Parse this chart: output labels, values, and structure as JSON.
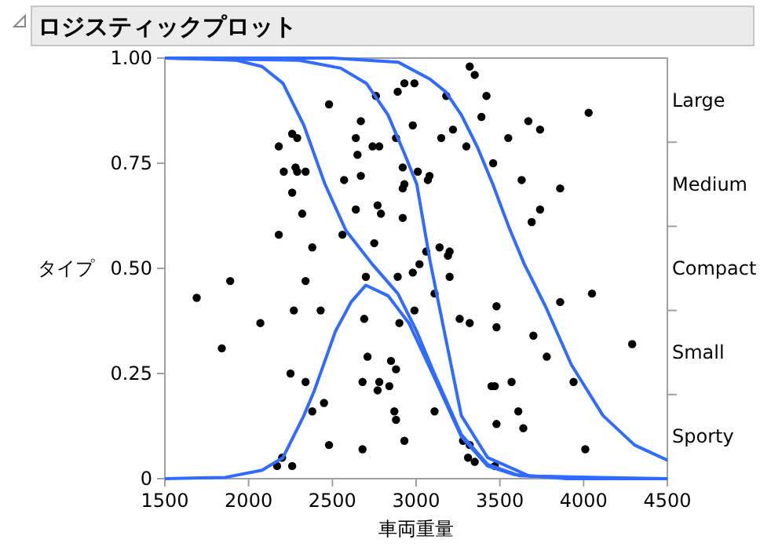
{
  "chart_data": {
    "type": "scatter",
    "title": "ロジスティックプロット",
    "xlabel": "車両重量",
    "ylabel": "タイプ",
    "xlim": [
      1500,
      4500
    ],
    "xticks": [
      1500,
      2000,
      2500,
      3000,
      3500,
      4000,
      4500
    ],
    "ylim": [
      0,
      1
    ],
    "yticks": [
      {
        "value": 0,
        "label": "0"
      },
      {
        "value": 0.25,
        "label": "0.25"
      },
      {
        "value": 0.5,
        "label": "0.50"
      },
      {
        "value": 0.75,
        "label": "0.75"
      },
      {
        "value": 1,
        "label": "1.00"
      }
    ],
    "annotations": [
      "Large",
      "Medium",
      "Compact",
      "Small",
      "Sporty"
    ],
    "grid": false,
    "series": [
      {
        "type": "scatter",
        "color": "#000000",
        "marker": "circle",
        "x": [
          2480,
          2760,
          2890,
          2930,
          2990,
          2670,
          2980,
          2260,
          2290,
          2180,
          2640,
          2880,
          2740,
          2780,
          2650,
          2210,
          2280,
          2290,
          2340,
          2920,
          2570,
          2670,
          2930,
          2920,
          2260,
          2640,
          2770,
          2790,
          2920,
          2320,
          2180,
          2560,
          2750,
          2380,
          3320,
          3350,
          3180,
          3420,
          4030,
          3390,
          3670,
          3740,
          3220,
          3150,
          3550,
          3300,
          3460,
          3010,
          3080,
          3070,
          3630,
          3860,
          3740,
          3690,
          3060,
          3140,
          3200,
          3190,
          1690,
          1890,
          1840,
          2070,
          2340,
          2270,
          2430,
          2700,
          2890,
          2980,
          2690,
          2900,
          2990,
          2250,
          2340,
          2710,
          2850,
          2880,
          2680,
          2780,
          2840,
          2770,
          2450,
          2380,
          2870,
          2880,
          2930,
          2480,
          2680,
          2200,
          2170,
          2260,
          3020,
          3200,
          3110,
          3860,
          4050,
          3480,
          3260,
          3320,
          3480,
          3700,
          4290,
          3780,
          3570,
          3940,
          3450,
          3470,
          3110,
          3610,
          3480,
          3640,
          3280,
          3320,
          3310,
          3350,
          4010,
          3470
        ],
        "values": [
          0.89,
          0.91,
          0.92,
          0.94,
          0.94,
          0.85,
          0.84,
          0.82,
          0.81,
          0.79,
          0.81,
          0.81,
          0.79,
          0.79,
          0.77,
          0.73,
          0.74,
          0.73,
          0.73,
          0.74,
          0.71,
          0.72,
          0.7,
          0.69,
          0.68,
          0.64,
          0.65,
          0.63,
          0.62,
          0.63,
          0.58,
          0.58,
          0.56,
          0.55,
          0.98,
          0.96,
          0.91,
          0.91,
          0.87,
          0.86,
          0.85,
          0.83,
          0.83,
          0.81,
          0.81,
          0.79,
          0.75,
          0.73,
          0.72,
          0.71,
          0.71,
          0.69,
          0.64,
          0.61,
          0.54,
          0.55,
          0.54,
          0.53,
          0.43,
          0.47,
          0.31,
          0.37,
          0.47,
          0.4,
          0.4,
          0.48,
          0.48,
          0.49,
          0.38,
          0.37,
          0.4,
          0.25,
          0.23,
          0.29,
          0.28,
          0.26,
          0.23,
          0.23,
          0.22,
          0.21,
          0.18,
          0.16,
          0.16,
          0.14,
          0.09,
          0.08,
          0.07,
          0.05,
          0.03,
          0.03,
          0.51,
          0.48,
          0.44,
          0.42,
          0.44,
          0.41,
          0.38,
          0.37,
          0.36,
          0.34,
          0.32,
          0.29,
          0.23,
          0.23,
          0.22,
          0.22,
          0.16,
          0.16,
          0.13,
          0.12,
          0.09,
          0.08,
          0.05,
          0.04,
          0.07,
          0.03
        ]
      },
      {
        "type": "line",
        "color": "#2f6bff",
        "x": [
          1500,
          1860,
          2080,
          2205,
          2330,
          2393,
          2518,
          2612,
          2700,
          2832,
          2957,
          3114,
          3270,
          3427,
          3584,
          3900,
          4500
        ],
        "values": [
          0,
          0.003,
          0.02,
          0.05,
          0.15,
          0.21,
          0.35,
          0.42,
          0.46,
          0.435,
          0.37,
          0.236,
          0.1,
          0.03,
          0.01,
          0,
          0
        ]
      },
      {
        "type": "line",
        "color": "#2f6bff",
        "x": [
          1500,
          1923,
          2080,
          2205,
          2330,
          2456,
          2581,
          2738,
          2891,
          3004,
          3114,
          3270,
          3427,
          3615,
          4200
        ],
        "values": [
          1,
          0.995,
          0.98,
          0.94,
          0.84,
          0.7,
          0.59,
          0.51,
          0.44,
          0.35,
          0.245,
          0.105,
          0.034,
          0.007,
          0
        ]
      },
      {
        "type": "line",
        "color": "#2f6bff",
        "x": [
          1500,
          2300,
          2550,
          2703,
          2832,
          2926,
          3004,
          3082,
          3270,
          3427,
          3678,
          4500
        ],
        "values": [
          1,
          0.995,
          0.976,
          0.94,
          0.865,
          0.777,
          0.7,
          0.52,
          0.15,
          0.05,
          0.006,
          0
        ]
      },
      {
        "type": "line",
        "color": "#2f6bff",
        "x": [
          1500,
          2500,
          2894,
          3082,
          3176,
          3270,
          3364,
          3458,
          3552,
          3646,
          3772,
          3928,
          4116,
          4304,
          4500
        ],
        "values": [
          1,
          1,
          0.99,
          0.95,
          0.92,
          0.865,
          0.79,
          0.7,
          0.6,
          0.51,
          0.41,
          0.27,
          0.15,
          0.08,
          0.044
        ]
      }
    ]
  }
}
